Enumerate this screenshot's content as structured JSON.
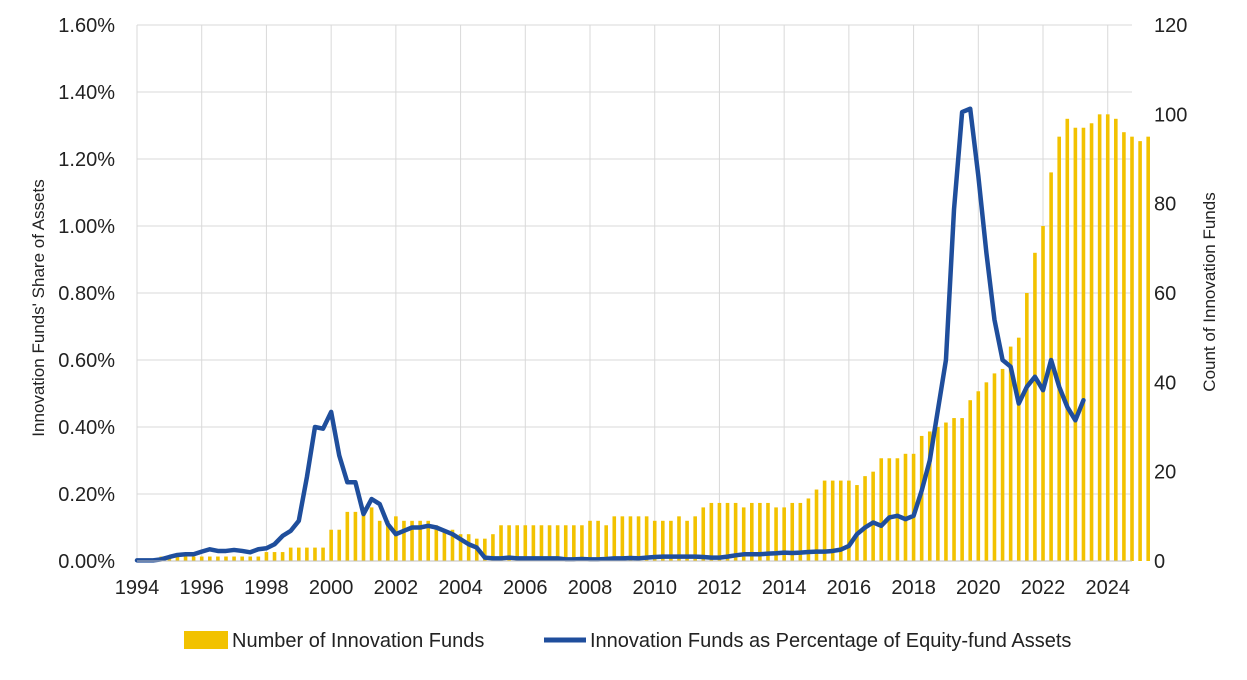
{
  "chart_data": {
    "type": "bar+line",
    "title": "",
    "x_axis": {
      "tick_labels": [
        "1994",
        "1996",
        "1998",
        "2000",
        "2002",
        "2004",
        "2006",
        "2008",
        "2010",
        "2012",
        "2014",
        "2016",
        "2018",
        "2020",
        "2022",
        "2024"
      ],
      "range": [
        1994,
        2024.75
      ],
      "grid": true
    },
    "y_left": {
      "label": "Innovation Funds' Share of Assets",
      "tick_labels": [
        "0.00%",
        "0.20%",
        "0.40%",
        "0.60%",
        "0.80%",
        "1.00%",
        "1.20%",
        "1.40%",
        "1.60%"
      ],
      "range": [
        0,
        1.6
      ],
      "unit": "%"
    },
    "y_right": {
      "label": "Count of Innovation Funds",
      "tick_labels": [
        "0",
        "20",
        "40",
        "60",
        "80",
        "100",
        "120"
      ],
      "range": [
        0,
        120
      ]
    },
    "grid": true,
    "legend_position": "bottom",
    "start_year": 1994,
    "period": "quarterly",
    "series": [
      {
        "name": "Number of Innovation Funds",
        "type": "bar",
        "axis": "right",
        "color": "#F2C200",
        "values": [
          0,
          0,
          0,
          1,
          1,
          1,
          1,
          1,
          1,
          1,
          1,
          1,
          1,
          1,
          1,
          1,
          2,
          2,
          2,
          3,
          3,
          3,
          3,
          3,
          7,
          7,
          11,
          11,
          12,
          12,
          9,
          9,
          10,
          9,
          9,
          9,
          9,
          8,
          7,
          7,
          6,
          6,
          5,
          5,
          6,
          8,
          8,
          8,
          8,
          8,
          8,
          8,
          8,
          8,
          8,
          8,
          9,
          9,
          8,
          10,
          10,
          10,
          10,
          10,
          9,
          9,
          9,
          10,
          9,
          10,
          12,
          13,
          13,
          13,
          13,
          12,
          13,
          13,
          13,
          12,
          12,
          13,
          13,
          14,
          16,
          18,
          18,
          18,
          18,
          17,
          19,
          20,
          23,
          23,
          23,
          24,
          24,
          28,
          29,
          30,
          31,
          32,
          32,
          36,
          38,
          40,
          42,
          43,
          48,
          50,
          60,
          69,
          75,
          87,
          95,
          99,
          97,
          97,
          98,
          100,
          100,
          99,
          96,
          95,
          94,
          95
        ]
      },
      {
        "name": "Innovation Funds as Percentage of Equity-fund Assets",
        "type": "line",
        "axis": "left",
        "color": "#1F4E9C",
        "values": [
          0.002,
          0.002,
          0.002,
          0.005,
          0.012,
          0.018,
          0.02,
          0.02,
          0.028,
          0.035,
          0.03,
          0.03,
          0.033,
          0.03,
          0.026,
          0.035,
          0.038,
          0.05,
          0.075,
          0.09,
          0.12,
          0.25,
          0.4,
          0.395,
          0.445,
          0.315,
          0.235,
          0.235,
          0.14,
          0.185,
          0.17,
          0.11,
          0.08,
          0.09,
          0.1,
          0.1,
          0.105,
          0.1,
          0.09,
          0.08,
          0.065,
          0.05,
          0.04,
          0.01,
          0.008,
          0.008,
          0.01,
          0.008,
          0.008,
          0.008,
          0.008,
          0.008,
          0.008,
          0.005,
          0.005,
          0.006,
          0.005,
          0.005,
          0.006,
          0.008,
          0.008,
          0.009,
          0.008,
          0.01,
          0.012,
          0.013,
          0.013,
          0.013,
          0.013,
          0.013,
          0.012,
          0.01,
          0.01,
          0.013,
          0.017,
          0.02,
          0.02,
          0.02,
          0.022,
          0.023,
          0.025,
          0.024,
          0.025,
          0.027,
          0.028,
          0.028,
          0.03,
          0.034,
          0.045,
          0.08,
          0.1,
          0.115,
          0.105,
          0.13,
          0.135,
          0.125,
          0.135,
          0.21,
          0.3,
          0.45,
          0.6,
          1.05,
          1.34,
          1.35,
          1.15,
          0.92,
          0.72,
          0.6,
          0.58,
          0.47,
          0.52,
          0.55,
          0.51,
          0.6,
          0.52,
          0.46,
          0.42,
          0.48
        ]
      }
    ]
  }
}
